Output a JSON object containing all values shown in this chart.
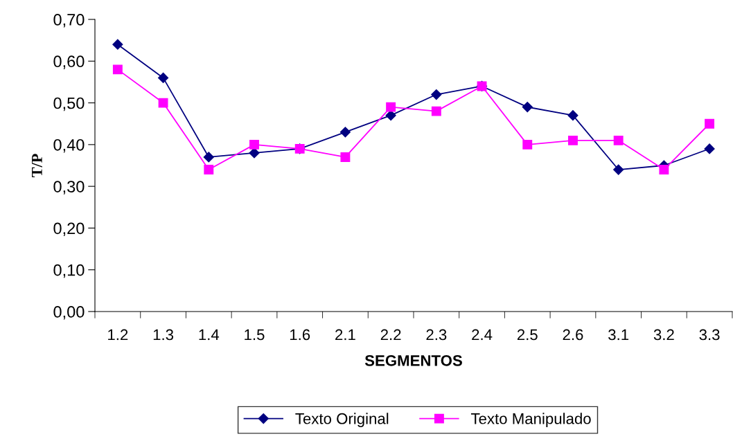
{
  "chart_data": {
    "type": "line",
    "xlabel": "SEGMENTOS",
    "ylabel": "T/P",
    "categories": [
      "1.2",
      "1.3",
      "1.4",
      "1.5",
      "1.6",
      "2.1",
      "2.2",
      "2.3",
      "2.4",
      "2.5",
      "2.6",
      "3.1",
      "3.2",
      "3.3"
    ],
    "series": [
      {
        "name": "Texto Original",
        "color": "#000080",
        "marker": "diamond",
        "values": [
          0.64,
          0.56,
          0.37,
          0.38,
          0.39,
          0.43,
          0.47,
          0.52,
          0.54,
          0.49,
          0.47,
          0.34,
          0.35,
          0.39
        ]
      },
      {
        "name": "Texto Manipulado",
        "color": "#ff00ff",
        "marker": "square",
        "values": [
          0.58,
          0.5,
          0.34,
          0.4,
          0.39,
          0.37,
          0.49,
          0.48,
          0.54,
          0.4,
          0.41,
          0.41,
          0.34,
          0.45
        ]
      }
    ],
    "ylim": [
      0,
      0.7
    ],
    "yticks": [
      {
        "value": 0,
        "label": "0,00"
      },
      {
        "value": 0.1,
        "label": "0,10"
      },
      {
        "value": 0.2,
        "label": "0,20"
      },
      {
        "value": 0.3,
        "label": "0,30"
      },
      {
        "value": 0.4,
        "label": "0,40"
      },
      {
        "value": 0.5,
        "label": "0,50"
      },
      {
        "value": 0.6,
        "label": "0,60"
      },
      {
        "value": 0.7,
        "label": "0,70"
      }
    ],
    "grid": false,
    "legend": "bottom",
    "line_style": "solid"
  }
}
